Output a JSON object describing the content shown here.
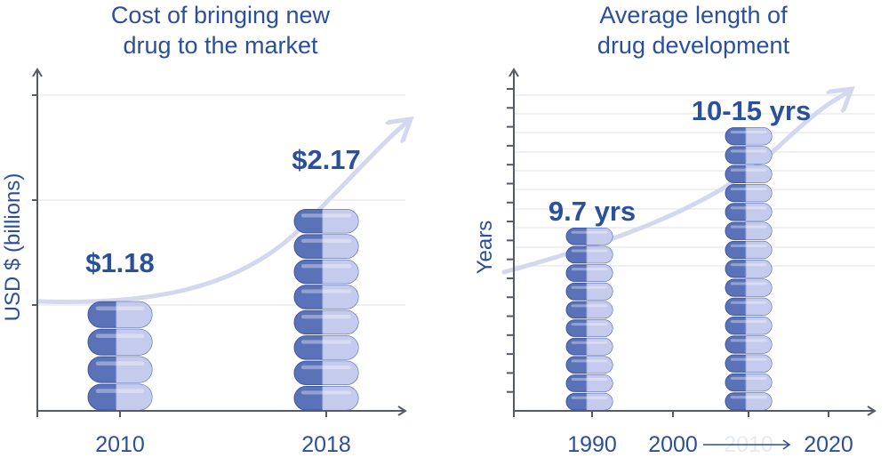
{
  "chart_data": [
    {
      "type": "bar",
      "title_lines": [
        "Cost of bringing new",
        "drug to the market"
      ],
      "ylabel": "USD $ (billions)",
      "categories": [
        "2010",
        "2018"
      ],
      "values": [
        1.18,
        2.17
      ],
      "value_labels": [
        "$1.18",
        "$2.17"
      ],
      "ylim": [
        0,
        3.5
      ],
      "grid": true,
      "trend_arrow": true
    },
    {
      "type": "bar",
      "title_lines": [
        "Average length of",
        "drug development"
      ],
      "ylabel": "Years",
      "x_ticks": [
        "1990",
        "2000",
        "2010",
        "2020"
      ],
      "categories": [
        "1990",
        "2010"
      ],
      "values": [
        9.7,
        15
      ],
      "value_labels": [
        "9.7 yrs",
        "10-15 yrs"
      ],
      "ylim": [
        0,
        17
      ],
      "grid": true,
      "trend_arrow": true
    }
  ],
  "colors": {
    "text": "#2a4f9c",
    "capsule_dark": "#5a72b8",
    "capsule_light": "#c4cbec",
    "trend": "#d4d8ee",
    "axis": "#555a66"
  }
}
